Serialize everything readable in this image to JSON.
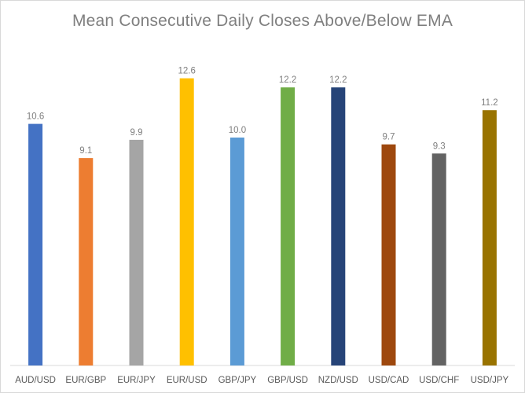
{
  "chart_data": {
    "type": "bar",
    "title": "Mean Consecutive Daily Closes Above/Below EMA",
    "xlabel": "",
    "ylabel": "",
    "categories": [
      "AUD/USD",
      "EUR/GBP",
      "EUR/JPY",
      "EUR/USD",
      "GBP/JPY",
      "GBP/USD",
      "NZD/USD",
      "USD/CAD",
      "USD/CHF",
      "USD/JPY"
    ],
    "values": [
      10.6,
      9.1,
      9.9,
      12.6,
      10.0,
      12.2,
      12.2,
      9.7,
      9.3,
      11.2
    ],
    "value_labels": [
      "10.6",
      "9.1",
      "9.9",
      "12.6",
      "10.0",
      "12.2",
      "12.2",
      "9.7",
      "9.3",
      "11.2"
    ],
    "colors": [
      "#4472c4",
      "#ed7d31",
      "#a5a5a5",
      "#ffc000",
      "#5b9bd5",
      "#70ad47",
      "#264478",
      "#9e480e",
      "#636363",
      "#997300"
    ],
    "ylim": [
      0,
      14
    ],
    "grid": false,
    "legend": "none"
  }
}
